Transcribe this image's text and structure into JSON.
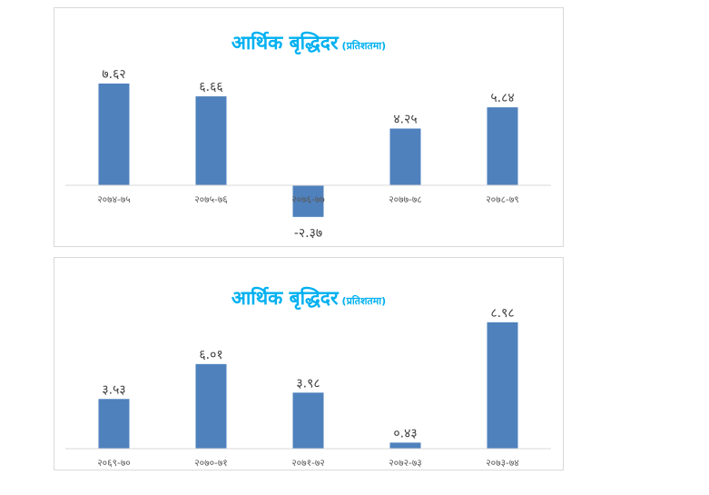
{
  "colors": {
    "bar": "#4F81BD",
    "title": "#00B0F0",
    "axis": "#D9D9D9",
    "tick_text": "#595959",
    "label_text": "#404040"
  },
  "chart_data": [
    {
      "type": "bar",
      "title": "आर्थिक बृद्धिदर",
      "subtitle": "(प्रतिशतमा)",
      "categories": [
        "२०७४-७५",
        "२०७५-७६",
        "२०७६-७७",
        "२०७७-७८",
        "२०७८-७९"
      ],
      "values": [
        7.62,
        6.66,
        -2.37,
        4.25,
        5.84
      ],
      "value_labels": [
        "७.६२",
        "६.६६",
        "-२.३७",
        "४.२५",
        "५.८४"
      ],
      "ylim": [
        -2.5,
        8.5
      ],
      "grid": false,
      "legend": "none"
    },
    {
      "type": "bar",
      "title": "आर्थिक बृद्धिदर",
      "subtitle": "(प्रतिशतमा)",
      "categories": [
        "२०६९-७०",
        "२०७०-७१",
        "२०७१-७२",
        "२०७२-७३",
        "२०७३-७४"
      ],
      "values": [
        3.53,
        6.01,
        3.98,
        0.43,
        8.98
      ],
      "value_labels": [
        "३.५३",
        "६.०१",
        "३.९८",
        "०.४३",
        "८.९८"
      ],
      "ylim": [
        0,
        9.5
      ],
      "grid": false,
      "legend": "none"
    }
  ]
}
